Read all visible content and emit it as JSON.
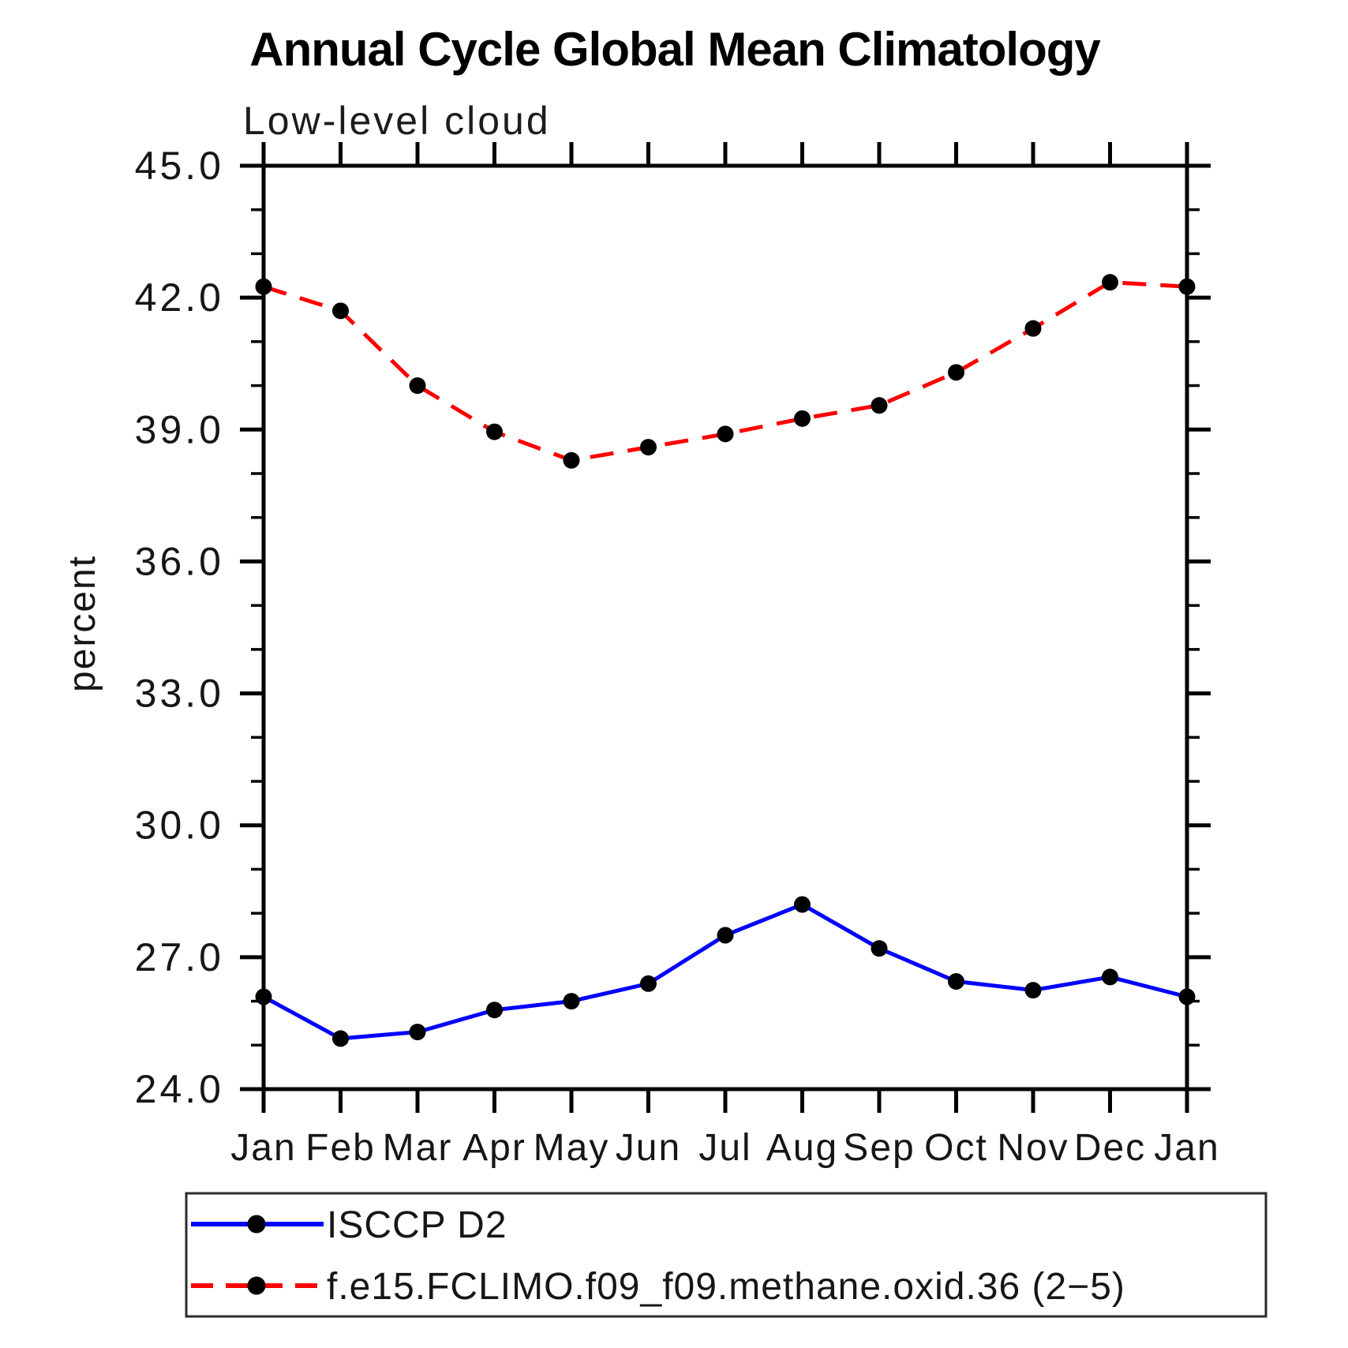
{
  "page": {
    "background": "#ffffff"
  },
  "chart_data": {
    "type": "line",
    "title": "Annual Cycle Global Mean Climatology",
    "subtitle": "Low-level cloud",
    "ylabel": "percent",
    "xlabel": "",
    "x_tick_labels": [
      "Jan",
      "Feb",
      "Mar",
      "Apr",
      "May",
      "Jun",
      "Jul",
      "Aug",
      "Sep",
      "Oct",
      "Nov",
      "Dec",
      "Jan"
    ],
    "ylim": [
      24.0,
      45.0
    ],
    "y_major_step": 3.0,
    "y_minor_step": 1.0,
    "y_major_tick_labels": [
      "24.0",
      "27.0",
      "30.0",
      "33.0",
      "36.0",
      "39.0",
      "42.0",
      "45.0"
    ],
    "grid": false,
    "legend_position": "bottom",
    "axis_color": "#000000",
    "marker_color": "#000000",
    "series": [
      {
        "name": "ISCCP D2",
        "color": "#0000ff",
        "style": "solid",
        "marker": "circle",
        "values": [
          26.1,
          25.15,
          25.3,
          25.8,
          26.0,
          26.4,
          27.5,
          28.2,
          27.2,
          26.45,
          26.25,
          26.55,
          26.1
        ]
      },
      {
        "name": "f.e15.FCLIMO.f09_f09.methane.oxid.36 (2−5)",
        "color": "#ff0000",
        "style": "dashed",
        "marker": "circle",
        "values": [
          42.25,
          41.7,
          40.0,
          38.95,
          38.3,
          38.6,
          38.9,
          39.25,
          39.55,
          40.3,
          41.3,
          42.35,
          42.25
        ]
      }
    ]
  }
}
